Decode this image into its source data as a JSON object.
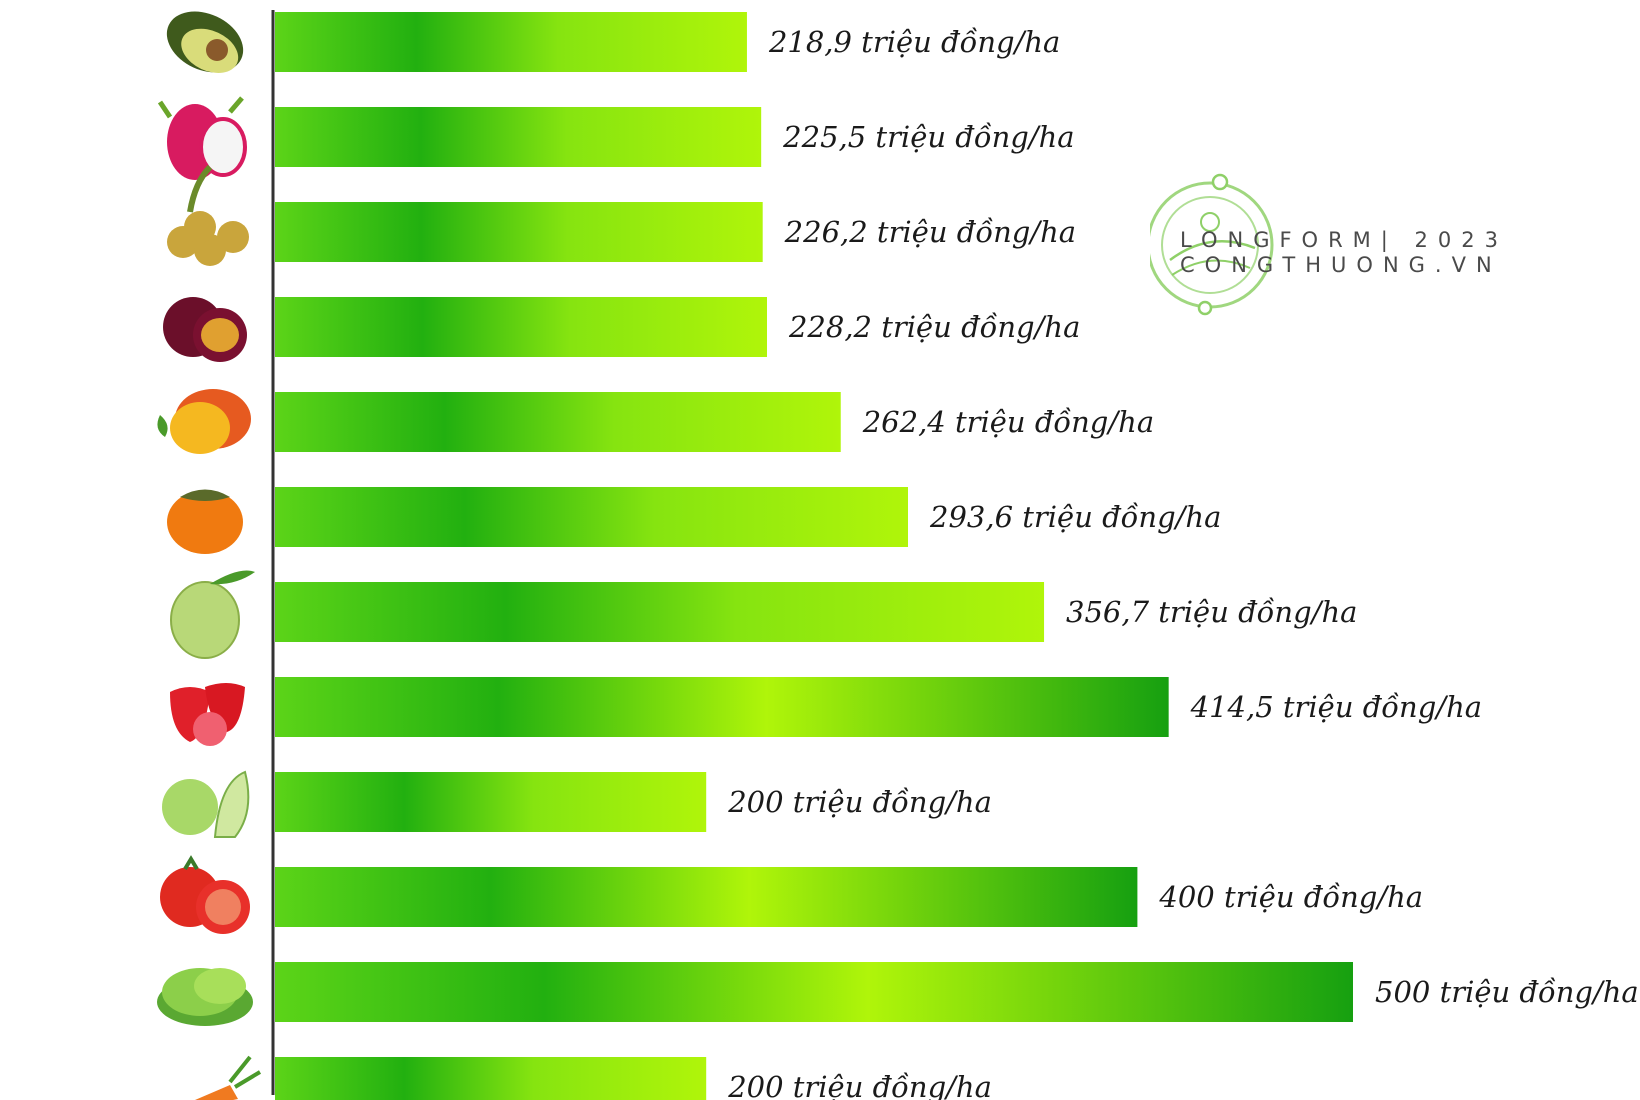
{
  "chart_data": {
    "type": "bar",
    "orientation": "horizontal",
    "unit": "triệu đồng/ha",
    "categories": [
      "avocado-icon",
      "dragon-fruit-icon",
      "longan-icon",
      "plum-icon",
      "mango-icon",
      "persimmon-icon",
      "custard-apple-icon",
      "strawberry-icon",
      "cabbage-icon",
      "tomato-icon",
      "lettuce-icon",
      "carrot-icon"
    ],
    "values": [
      218.9,
      225.5,
      226.2,
      228.2,
      262.4,
      293.6,
      356.7,
      414.5,
      200,
      400,
      500,
      200
    ],
    "labels": [
      "218,9 triệu đồng/ha",
      "225,5 triệu đồng/ha",
      "226,2 triệu đồng/ha",
      "228,2 triệu đồng/ha",
      "262,4 triệu đồng/ha",
      "293,6 triệu đồng/ha",
      "356,7 triệu đồng/ha",
      "414,5 triệu đồng/ha",
      "200 triệu đồng/ha",
      "400 triệu đồng/ha",
      "500 triệu đồng/ha",
      "200 triệu đồng/ha"
    ],
    "xlim": [
      0,
      500
    ],
    "grid": false,
    "colors": {
      "bar_dark": "#22b010",
      "bar_light": "#aaf20a",
      "axis": "#333333"
    }
  },
  "watermark": {
    "line1": "LONGFORM| 2023",
    "line2": "CONGTHUONG.VN",
    "color": "#7cc35a"
  }
}
